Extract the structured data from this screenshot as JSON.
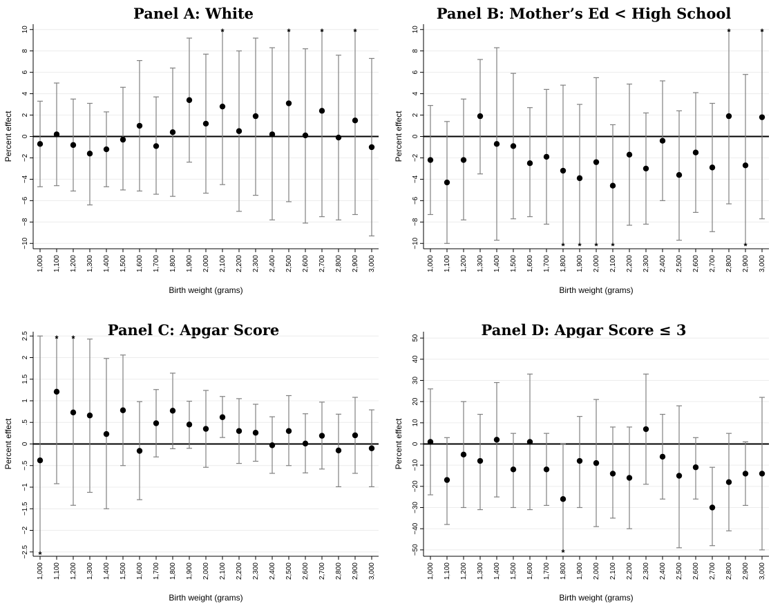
{
  "chart_data": [
    {
      "type": "scatter",
      "title": "Panel A: White",
      "xlabel": "Birth weight (grams)",
      "ylabel": "Percent effect",
      "x": [
        "1,000",
        "1,100",
        "1,200",
        "1,300",
        "1,400",
        "1,500",
        "1,600",
        "1,700",
        "1,800",
        "1,900",
        "2,000",
        "2,100",
        "2,200",
        "2,300",
        "2,400",
        "2,500",
        "2,600",
        "2,700",
        "2,800",
        "2,900",
        "3,000"
      ],
      "ylim": [
        -10.5,
        10.5
      ],
      "yticks": [
        -10,
        -8,
        -6,
        -4,
        -2,
        0,
        2,
        4,
        6,
        8,
        10
      ],
      "ytick_labels": [
        "−10",
        "−8",
        "−6",
        "−4",
        "−2",
        "0",
        "2",
        "4",
        "6",
        "8",
        "10"
      ],
      "grid": true,
      "series": [
        {
          "estimate": [
            -0.7,
            0.2,
            -0.8,
            -1.6,
            -1.2,
            -0.3,
            1.0,
            -0.9,
            0.4,
            3.4,
            1.2,
            2.8,
            0.5,
            1.9,
            0.2,
            3.1,
            0.1,
            2.4,
            -0.1,
            1.5,
            -1.0
          ],
          "ci_low": [
            -4.7,
            -4.6,
            -5.1,
            -6.4,
            -4.7,
            -5.0,
            -5.1,
            -5.4,
            -5.6,
            -2.4,
            -5.3,
            -4.5,
            -7.0,
            -5.5,
            -7.8,
            -6.1,
            -8.1,
            -7.5,
            -7.8,
            -7.3,
            -9.3
          ],
          "ci_high": [
            3.3,
            5.0,
            3.5,
            3.1,
            2.3,
            4.6,
            7.1,
            3.7,
            6.4,
            9.2,
            7.7,
            10.0,
            8.0,
            9.2,
            8.3,
            10.0,
            8.2,
            10.0,
            7.6,
            10.0,
            7.3
          ],
          "truncated_high": [
            false,
            false,
            false,
            false,
            false,
            false,
            false,
            false,
            false,
            false,
            false,
            true,
            false,
            false,
            false,
            true,
            false,
            true,
            false,
            true,
            false
          ],
          "truncated_low": [
            false,
            false,
            false,
            false,
            false,
            false,
            false,
            false,
            false,
            false,
            false,
            false,
            false,
            false,
            false,
            false,
            false,
            false,
            false,
            false,
            false
          ]
        }
      ]
    },
    {
      "type": "scatter",
      "title": "Panel B: Mother’s Ed < High School",
      "xlabel": "Birth weight (grams)",
      "ylabel": "Percent effect",
      "x": [
        "1,000",
        "1,100",
        "1,200",
        "1,300",
        "1,400",
        "1,500",
        "1,600",
        "1,700",
        "1,800",
        "1,900",
        "2,000",
        "2,100",
        "2,200",
        "2,300",
        "2,400",
        "2,500",
        "2,600",
        "2,700",
        "2,800",
        "2,900",
        "3,000"
      ],
      "ylim": [
        -10.5,
        10.5
      ],
      "yticks": [
        -10,
        -8,
        -6,
        -4,
        -2,
        0,
        2,
        4,
        6,
        8,
        10
      ],
      "ytick_labels": [
        "−10",
        "−8",
        "−6",
        "−4",
        "−2",
        "0",
        "2",
        "4",
        "6",
        "8",
        "10"
      ],
      "grid": true,
      "series": [
        {
          "estimate": [
            -2.2,
            -4.3,
            -2.2,
            1.9,
            -0.7,
            -0.9,
            -2.5,
            -1.9,
            -3.2,
            -3.9,
            -2.4,
            -4.6,
            -1.7,
            -3.0,
            -0.4,
            -3.6,
            -1.5,
            -2.9,
            1.9,
            -2.7,
            1.8
          ],
          "ci_low": [
            -7.3,
            -10.0,
            -7.8,
            -3.5,
            -9.7,
            -7.7,
            -7.5,
            -8.2,
            -10.0,
            -10.0,
            -10.0,
            -10.0,
            -8.3,
            -8.2,
            -6.0,
            -9.7,
            -7.1,
            -8.9,
            -6.3,
            -10.0,
            -7.7
          ],
          "ci_high": [
            2.9,
            1.4,
            3.5,
            7.2,
            8.3,
            5.9,
            2.7,
            4.4,
            4.8,
            3.0,
            5.5,
            1.1,
            4.9,
            2.2,
            5.2,
            2.4,
            4.1,
            3.1,
            10.0,
            5.8,
            10.0
          ],
          "truncated_high": [
            false,
            false,
            false,
            false,
            false,
            false,
            false,
            false,
            false,
            false,
            false,
            false,
            false,
            false,
            false,
            false,
            false,
            false,
            true,
            false,
            true
          ],
          "truncated_low": [
            false,
            false,
            false,
            false,
            false,
            false,
            false,
            false,
            true,
            true,
            true,
            true,
            false,
            false,
            false,
            false,
            false,
            false,
            false,
            true,
            false
          ]
        }
      ]
    },
    {
      "type": "scatter",
      "title": "Panel C: Apgar Score",
      "xlabel": "Birth weight (grams)",
      "ylabel": "Percent effect",
      "x": [
        "1,000",
        "1,100",
        "1,200",
        "1,300",
        "1,400",
        "1,500",
        "1,600",
        "1,700",
        "1,800",
        "1,900",
        "2,000",
        "2,100",
        "2,200",
        "2,300",
        "2,400",
        "2,500",
        "2,600",
        "2,700",
        "2,800",
        "2,900",
        "3,000"
      ],
      "ylim": [
        -2.6,
        2.6
      ],
      "yticks": [
        -2.5,
        -2,
        -1.5,
        -1,
        -0.5,
        0,
        0.5,
        1,
        1.5,
        2,
        2.5
      ],
      "ytick_labels": [
        "−2.5",
        "−2",
        "−1.5",
        "−1",
        "−.5",
        "0",
        ".5",
        "1",
        "1.5",
        "2",
        "2.5"
      ],
      "grid": true,
      "series": [
        {
          "estimate": [
            -0.38,
            1.21,
            0.73,
            0.66,
            0.23,
            0.78,
            -0.16,
            0.48,
            0.77,
            0.45,
            0.35,
            0.62,
            0.3,
            0.26,
            -0.03,
            0.3,
            0.01,
            0.19,
            -0.15,
            0.2,
            -0.1
          ],
          "ci_low": [
            -2.5,
            -0.92,
            -1.42,
            -1.12,
            -1.5,
            -0.5,
            -1.29,
            -0.3,
            -0.11,
            -0.1,
            -0.54,
            0.15,
            -0.45,
            -0.4,
            -0.68,
            -0.5,
            -0.67,
            -0.58,
            -0.99,
            -0.68,
            -0.99
          ],
          "ci_high": [
            2.5,
            2.5,
            2.5,
            2.43,
            1.98,
            2.06,
            0.98,
            1.26,
            1.64,
            0.99,
            1.24,
            1.1,
            1.05,
            0.92,
            0.63,
            1.12,
            0.7,
            0.97,
            0.69,
            1.08,
            0.79
          ],
          "truncated_high": [
            false,
            true,
            true,
            false,
            false,
            false,
            false,
            false,
            false,
            false,
            false,
            false,
            false,
            false,
            false,
            false,
            false,
            false,
            false,
            false,
            false
          ],
          "truncated_low": [
            true,
            false,
            false,
            false,
            false,
            false,
            false,
            false,
            false,
            false,
            false,
            false,
            false,
            false,
            false,
            false,
            false,
            false,
            false,
            false,
            false
          ]
        }
      ]
    },
    {
      "type": "scatter",
      "title": "Panel D: Apgar Score ≤ 3",
      "xlabel": "Birth weight (grams)",
      "ylabel": "Percent effect",
      "x": [
        "1,000",
        "1,100",
        "1,200",
        "1,300",
        "1,400",
        "1,500",
        "1,600",
        "1,700",
        "1,800",
        "1,900",
        "2,000",
        "2,100",
        "2,200",
        "2,300",
        "2,400",
        "2,500",
        "2,600",
        "2,700",
        "2,800",
        "2,900",
        "3,000"
      ],
      "ylim": [
        -53,
        53
      ],
      "yticks": [
        -50,
        -40,
        -30,
        -20,
        -10,
        0,
        10,
        20,
        30,
        40,
        50
      ],
      "ytick_labels": [
        "−50",
        "−40",
        "−30",
        "−20",
        "−10",
        "0",
        "10",
        "20",
        "30",
        "40",
        "50"
      ],
      "grid": true,
      "series": [
        {
          "estimate": [
            1,
            -17,
            -5,
            -8,
            2,
            -12,
            1,
            -12,
            -26,
            -8,
            -9,
            -14,
            -16,
            7,
            -6,
            -15,
            -11,
            -30,
            -18,
            -14,
            -14
          ],
          "ci_low": [
            -24,
            -38,
            -30,
            -31,
            -25,
            -30,
            -31,
            -29,
            -50,
            -30,
            -39,
            -35,
            -40,
            -19,
            -26,
            -49,
            -26,
            -48,
            -41,
            -29,
            -50
          ],
          "ci_high": [
            26,
            3,
            20,
            14,
            29,
            5,
            33,
            5,
            0,
            13,
            21,
            8,
            8,
            33,
            14,
            18,
            3,
            -11,
            5,
            1,
            22
          ],
          "truncated_high": [
            false,
            false,
            false,
            false,
            false,
            false,
            false,
            false,
            false,
            false,
            false,
            false,
            false,
            false,
            false,
            false,
            false,
            false,
            false,
            false,
            false
          ],
          "truncated_low": [
            false,
            false,
            false,
            false,
            false,
            false,
            false,
            false,
            true,
            false,
            false,
            false,
            false,
            false,
            false,
            false,
            false,
            false,
            false,
            false,
            false
          ]
        }
      ]
    }
  ]
}
